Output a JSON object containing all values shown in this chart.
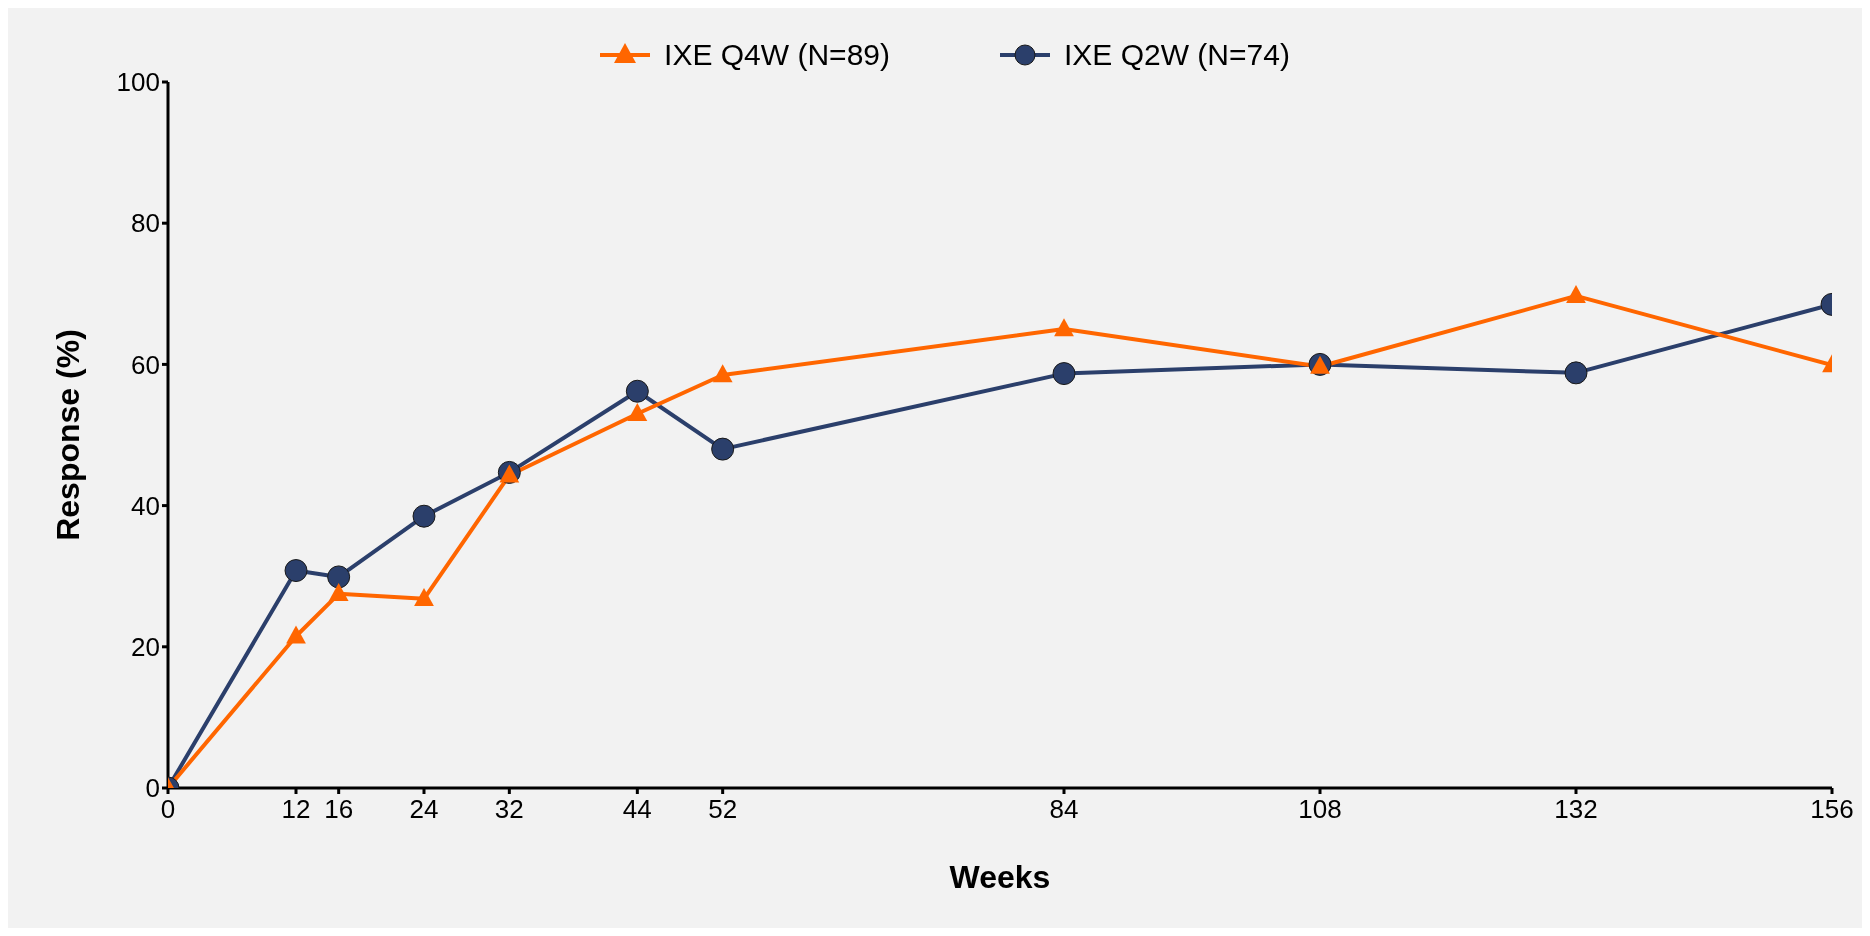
{
  "chart_data": {
    "type": "line",
    "xlabel": "Weeks",
    "ylabel": "Response (%)",
    "x": [
      0,
      12,
      16,
      24,
      32,
      44,
      52,
      84,
      108,
      132,
      156
    ],
    "xlim": [
      0,
      156
    ],
    "xticks": [
      0,
      12,
      16,
      24,
      32,
      44,
      52,
      84,
      108,
      132,
      156
    ],
    "ylim": [
      0,
      100
    ],
    "yticks": [
      0,
      20,
      40,
      60,
      80,
      100
    ],
    "grid": false,
    "legend": "top",
    "line_style": "solid",
    "series": [
      {
        "name": "IXE Q4W (N=89)",
        "color": "#ff6600",
        "marker": "triangle",
        "values": [
          0,
          21.5,
          27.5,
          26.8,
          44.3,
          53,
          58.5,
          65,
          59.7,
          69.7,
          59.9
        ]
      },
      {
        "name": "IXE Q2W (N=74)",
        "color": "#2b3f6b",
        "marker": "circle",
        "values": [
          0,
          30.8,
          29.9,
          38.5,
          44.7,
          56.2,
          48,
          58.7,
          60,
          58.8,
          68.5
        ]
      }
    ]
  }
}
